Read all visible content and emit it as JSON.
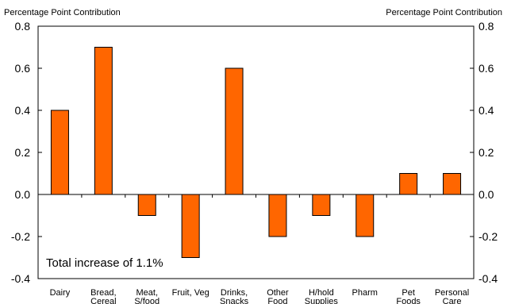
{
  "chart_data": {
    "type": "bar",
    "ylabel_left": "Percentage Point Contribution",
    "ylabel_right": "Percentage Point Contribution",
    "ylim": [
      -0.4,
      0.8
    ],
    "yticks": [
      "0.8",
      "0.6",
      "0.4",
      "0.2",
      "0.0",
      "-0.2",
      "-0.4"
    ],
    "categories": [
      [
        "Dairy"
      ],
      [
        "Bread,",
        "Cereal"
      ],
      [
        "Meat,",
        "S/food"
      ],
      [
        "Fruit, Veg"
      ],
      [
        "Drinks,",
        "Snacks"
      ],
      [
        "Other",
        "Food"
      ],
      [
        "H/hold",
        "Supplies"
      ],
      [
        "Pharm"
      ],
      [
        "Pet",
        "Foods"
      ],
      [
        "Personal",
        "Care"
      ]
    ],
    "values": [
      0.4,
      0.7,
      -0.1,
      -0.3,
      0.6,
      -0.2,
      -0.1,
      -0.2,
      0.1,
      0.1
    ],
    "annotation": "Total increase of 1.1%",
    "bar_color": "#ff6600",
    "grid": false,
    "legend": "none"
  }
}
